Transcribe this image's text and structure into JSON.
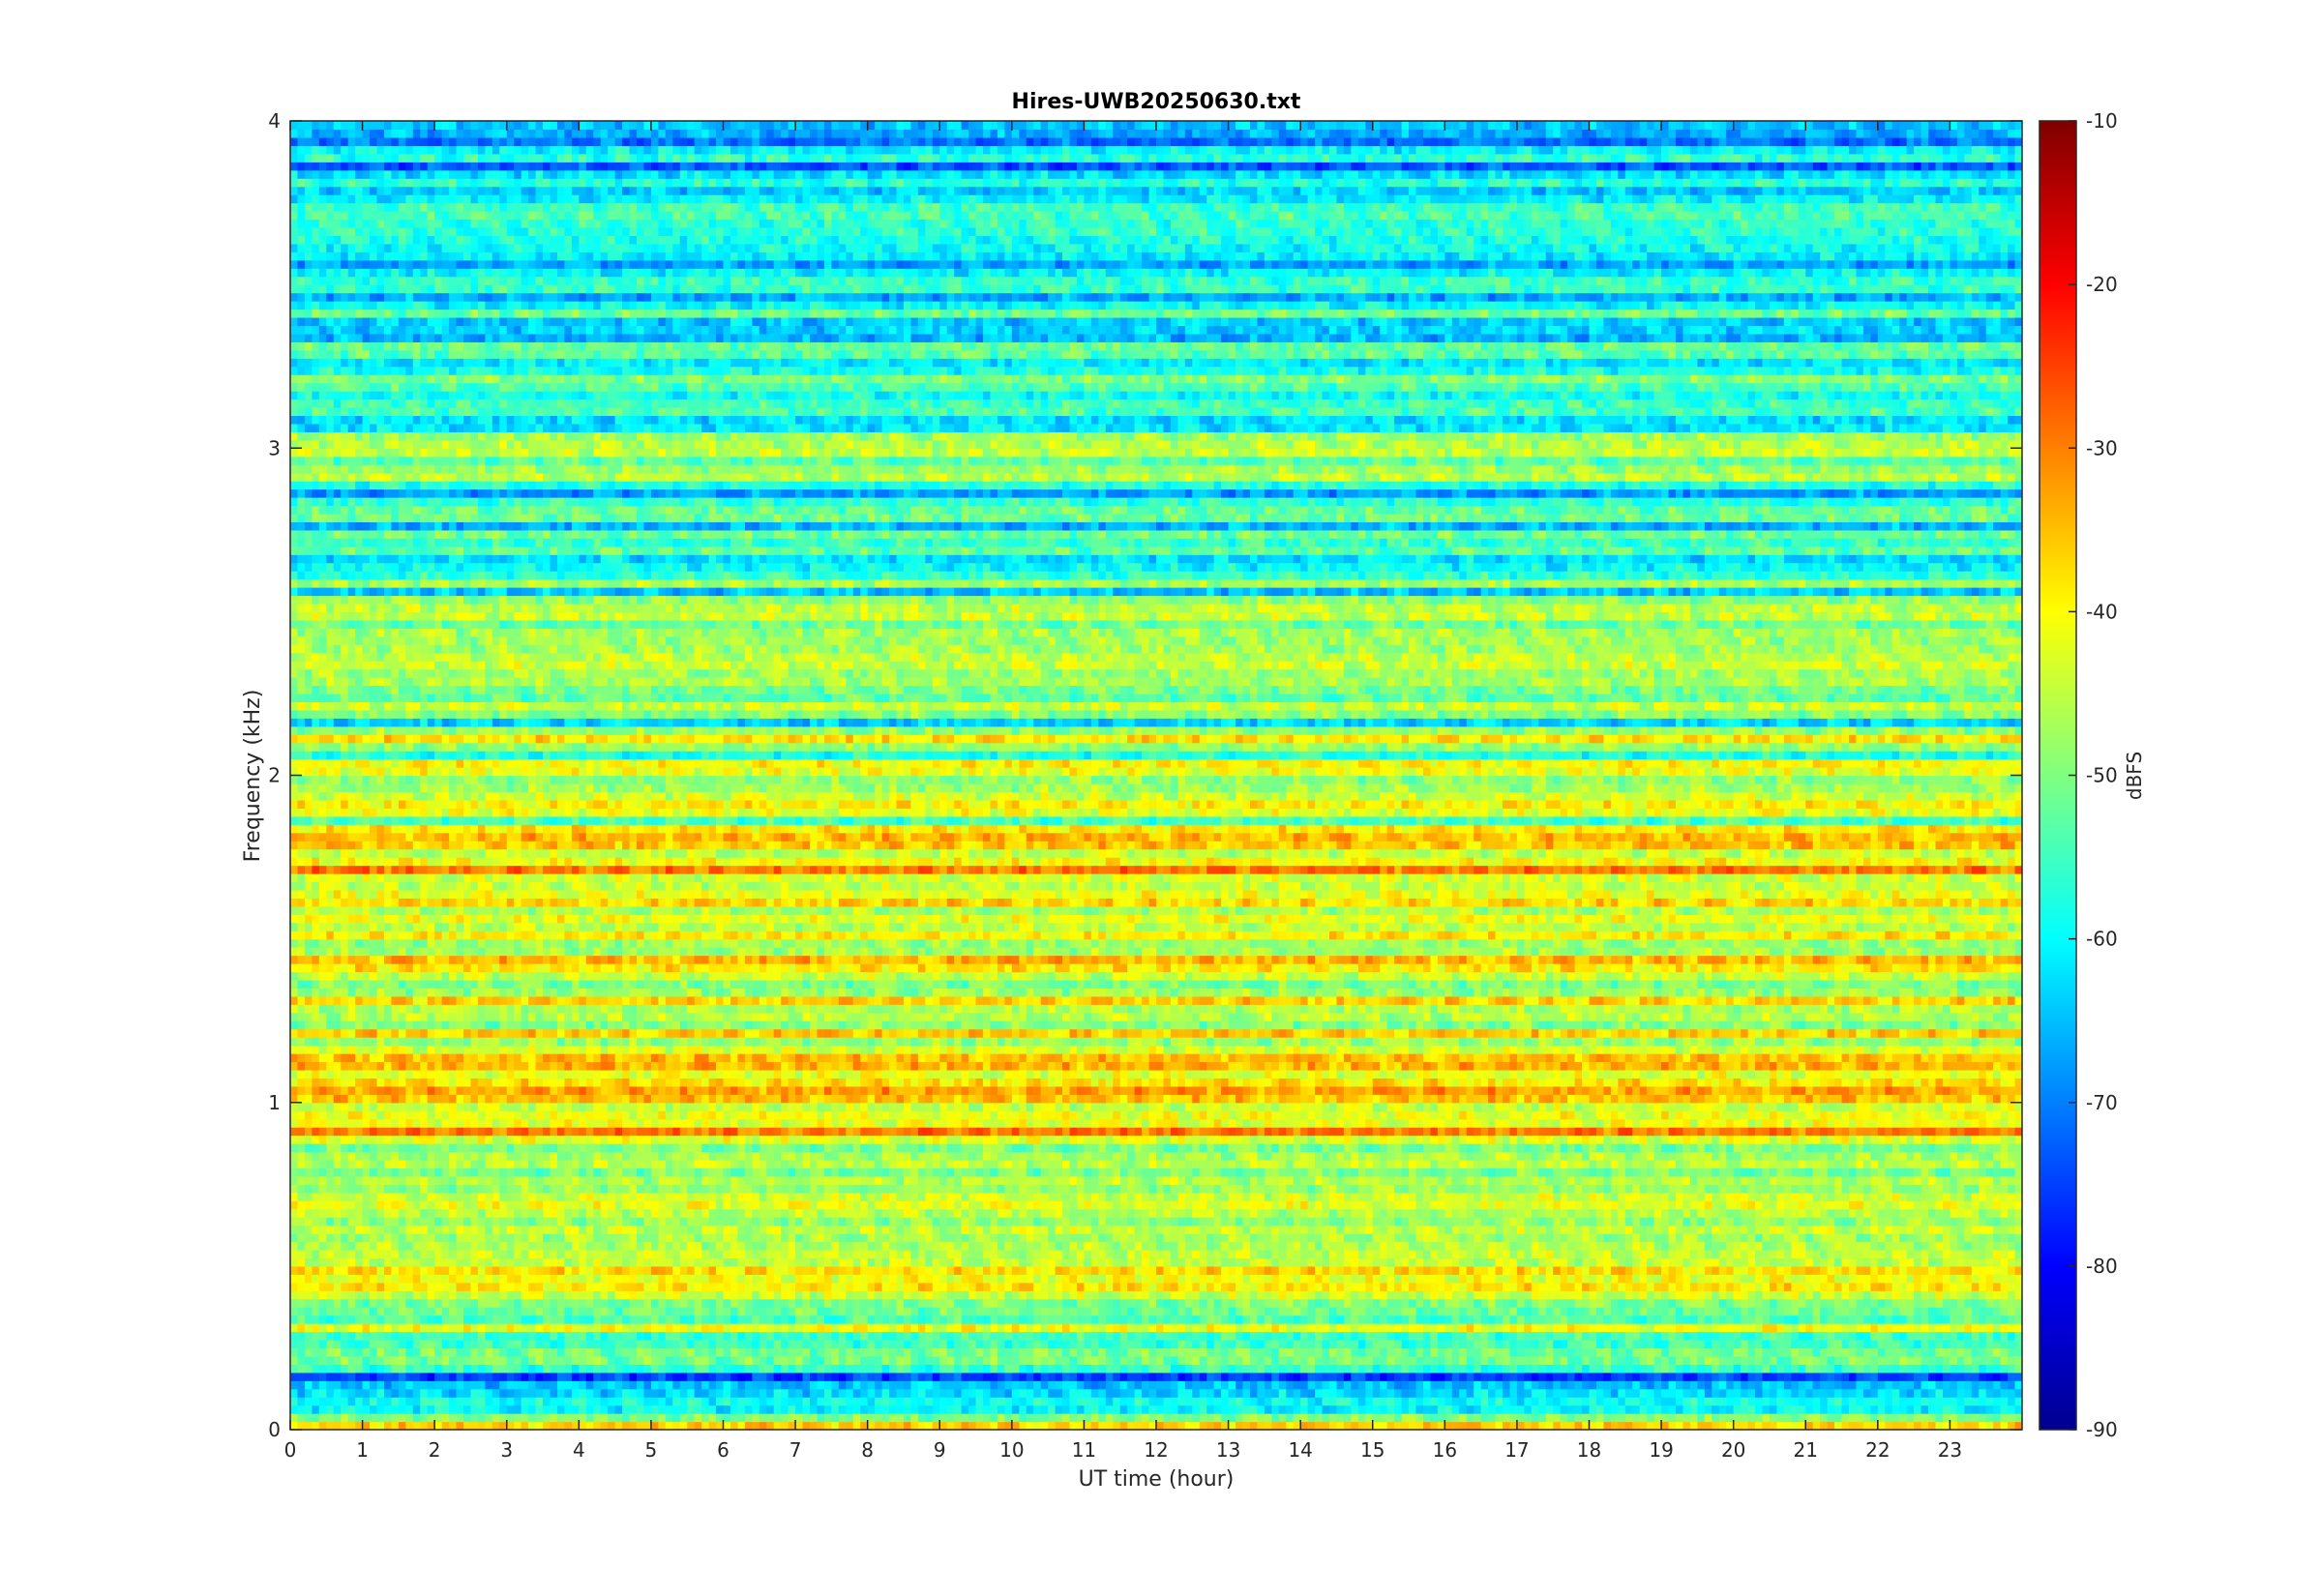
{
  "chart_data": {
    "type": "heatmap",
    "title": "Hires-UWB20250630.txt",
    "xlabel": "UT time (hour)",
    "ylabel": "Frequency (kHz)",
    "xlim": [
      0,
      24
    ],
    "ylim": [
      0,
      4
    ],
    "x_ticks": [
      "0",
      "1",
      "2",
      "3",
      "4",
      "5",
      "6",
      "7",
      "8",
      "9",
      "10",
      "11",
      "12",
      "13",
      "14",
      "15",
      "16",
      "17",
      "18",
      "19",
      "20",
      "21",
      "22",
      "23"
    ],
    "y_ticks": [
      "0",
      "1",
      "2",
      "3",
      "4"
    ],
    "colorbar": {
      "label": "dBFS",
      "range": [
        -90,
        -10
      ],
      "ticks": [
        "-90",
        "-80",
        "-70",
        "-60",
        "-50",
        "-40",
        "-30",
        "-20",
        "-10"
      ],
      "colormap": "jet"
    },
    "band_levels_dbfs": [
      {
        "freq_khz": 0.03,
        "level": -44
      },
      {
        "freq_khz": 0.1,
        "level": -72
      },
      {
        "freq_khz": 0.25,
        "level": -55
      },
      {
        "freq_khz": 0.45,
        "level": -42
      },
      {
        "freq_khz": 0.7,
        "level": -48
      },
      {
        "freq_khz": 1.05,
        "level": -38
      },
      {
        "freq_khz": 1.3,
        "level": -45
      },
      {
        "freq_khz": 1.5,
        "level": -40
      },
      {
        "freq_khz": 1.65,
        "level": -38
      },
      {
        "freq_khz": 1.9,
        "level": -43
      },
      {
        "freq_khz": 2.2,
        "level": -52
      },
      {
        "freq_khz": 2.4,
        "level": -47
      },
      {
        "freq_khz": 2.7,
        "level": -58
      },
      {
        "freq_khz": 3.0,
        "level": -52
      },
      {
        "freq_khz": 3.3,
        "level": -60
      },
      {
        "freq_khz": 3.6,
        "level": -58
      },
      {
        "freq_khz": 3.9,
        "level": -63
      }
    ]
  }
}
